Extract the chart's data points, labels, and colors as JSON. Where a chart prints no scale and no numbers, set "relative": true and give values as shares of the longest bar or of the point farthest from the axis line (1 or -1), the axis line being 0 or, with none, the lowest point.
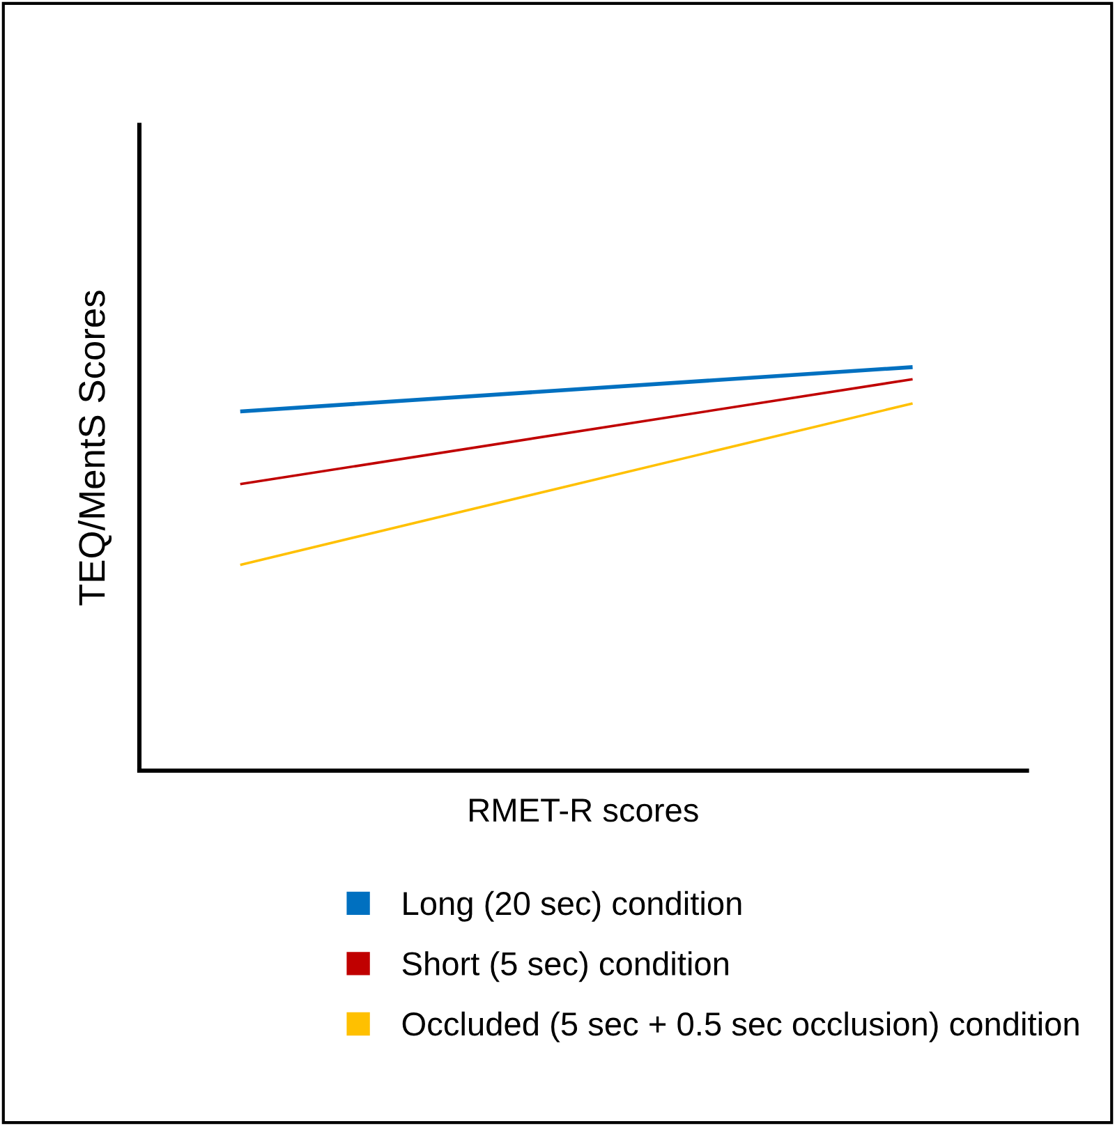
{
  "chart_data": {
    "type": "line",
    "relative": true,
    "xlabel": "RMET-R scores",
    "ylabel": "TEQ/MentS Scores",
    "categories": [
      null,
      null
    ],
    "series": [
      {
        "name": "Long (20 sec) condition",
        "color": "#0070c0",
        "values": [
          0.89,
          1.0
        ]
      },
      {
        "name": "Short (5 sec) condition",
        "color": "#c00000",
        "values": [
          0.71,
          0.97
        ]
      },
      {
        "name": "Occluded (5 sec + 0.5 sec occlusion) condition",
        "color": "#ffc000",
        "values": [
          0.51,
          0.91
        ]
      }
    ],
    "legend": "bottom",
    "grid": false,
    "marker": "none",
    "line_style": "solid",
    "tick_labels": false
  }
}
